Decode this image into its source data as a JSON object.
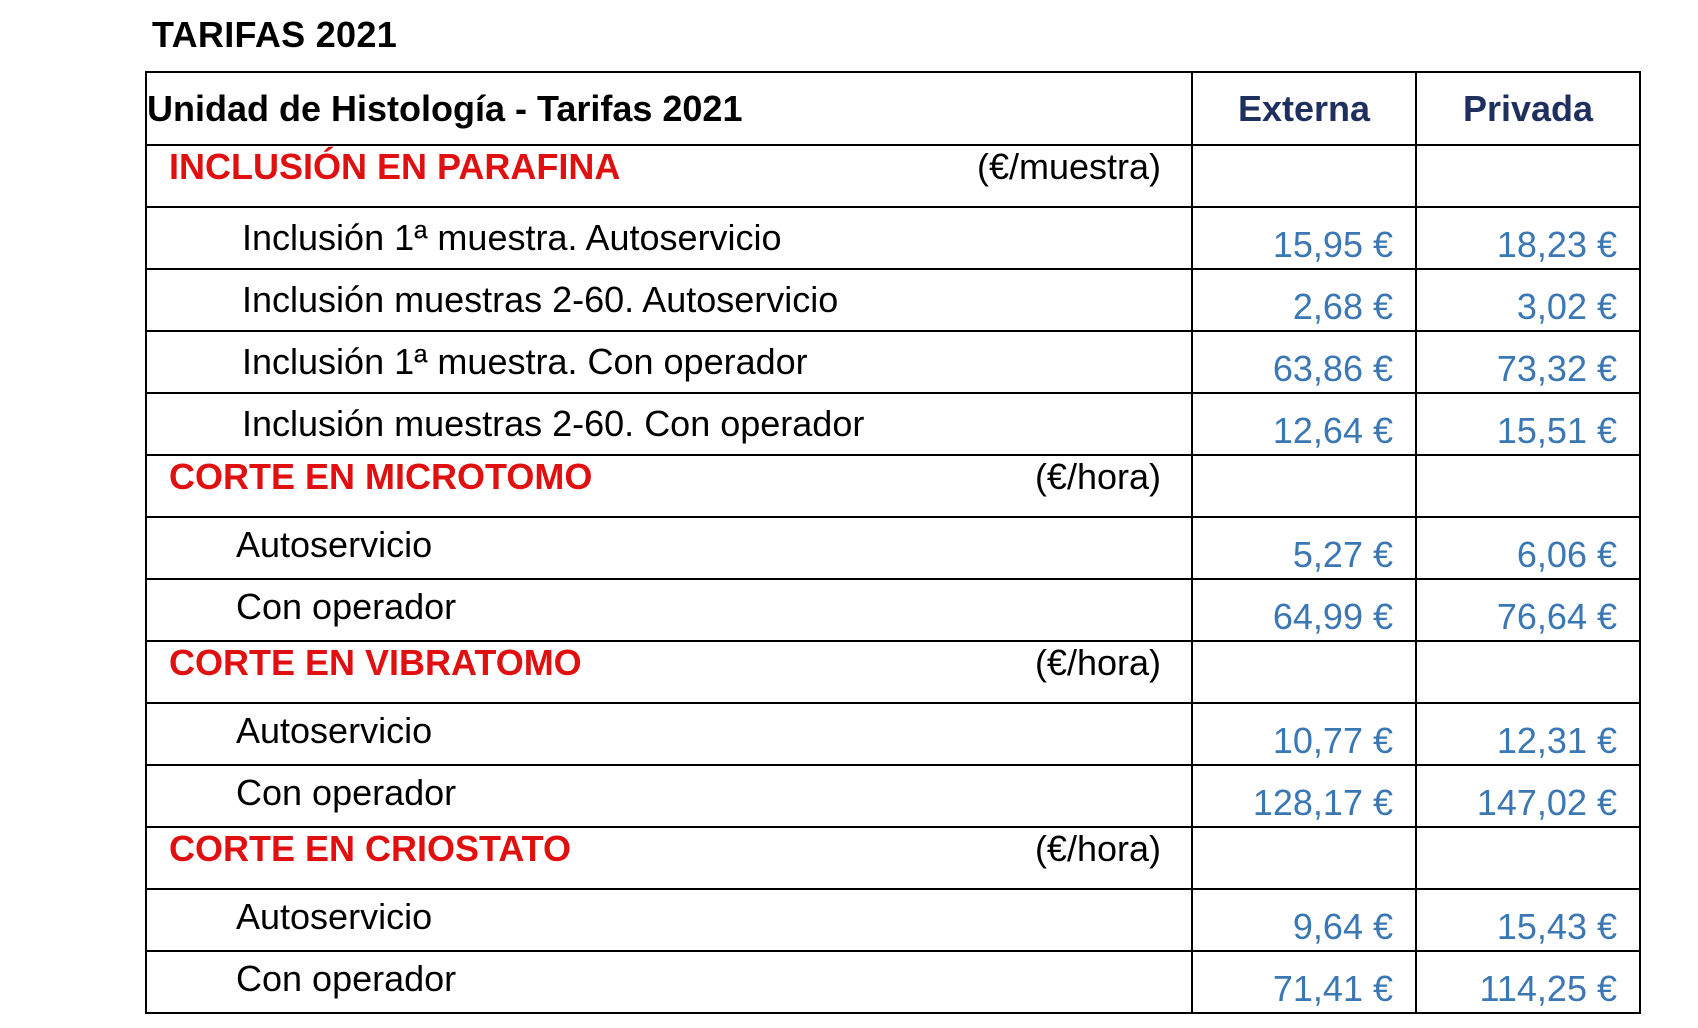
{
  "title": "TARIFAS 2021",
  "table": {
    "header": {
      "title": "Unidad de Histología - Tarifas 2021",
      "col_externa": "Externa",
      "col_privada": "Privada"
    },
    "sections": [
      {
        "name": "INCLUSIÓN EN PARAFINA",
        "unit": "(€/muestra)",
        "rows": [
          {
            "desc": "Inclusión 1ª muestra. Autoservicio",
            "externa": "15,95 €",
            "privada": "18,23 €"
          },
          {
            "desc": "Inclusión muestras 2-60. Autoservicio",
            "externa": "2,68 €",
            "privada": "3,02 €"
          },
          {
            "desc": "Inclusión 1ª muestra. Con operador",
            "externa": "63,86 €",
            "privada": "73,32 €"
          },
          {
            "desc": "Inclusión muestras 2-60. Con operador",
            "externa": "12,64 €",
            "privada": "15,51 €"
          }
        ]
      },
      {
        "name": "CORTE EN MICROTOMO",
        "unit": "(€/hora)",
        "rows": [
          {
            "desc": "Autoservicio",
            "externa": "5,27 €",
            "privada": "6,06 €"
          },
          {
            "desc": "Con operador",
            "externa": "64,99 €",
            "privada": "76,64 €"
          }
        ]
      },
      {
        "name": "CORTE EN VIBRATOMO",
        "unit": "(€/hora)",
        "rows": [
          {
            "desc": "Autoservicio",
            "externa": "10,77 €",
            "privada": "12,31 €"
          },
          {
            "desc": "Con operador",
            "externa": "128,17 €",
            "privada": "147,02 €"
          }
        ]
      },
      {
        "name": "CORTE EN CRIOSTATO",
        "unit": "(€/hora)",
        "rows": [
          {
            "desc": "Autoservicio",
            "externa": "9,64 €",
            "privada": "15,43 €"
          },
          {
            "desc": "Con operador",
            "externa": "71,41 €",
            "privada": "114,25 €"
          }
        ]
      }
    ]
  },
  "colors": {
    "section": "#e01010",
    "header_col": "#1f2f5e",
    "price": "#3a77b3"
  }
}
